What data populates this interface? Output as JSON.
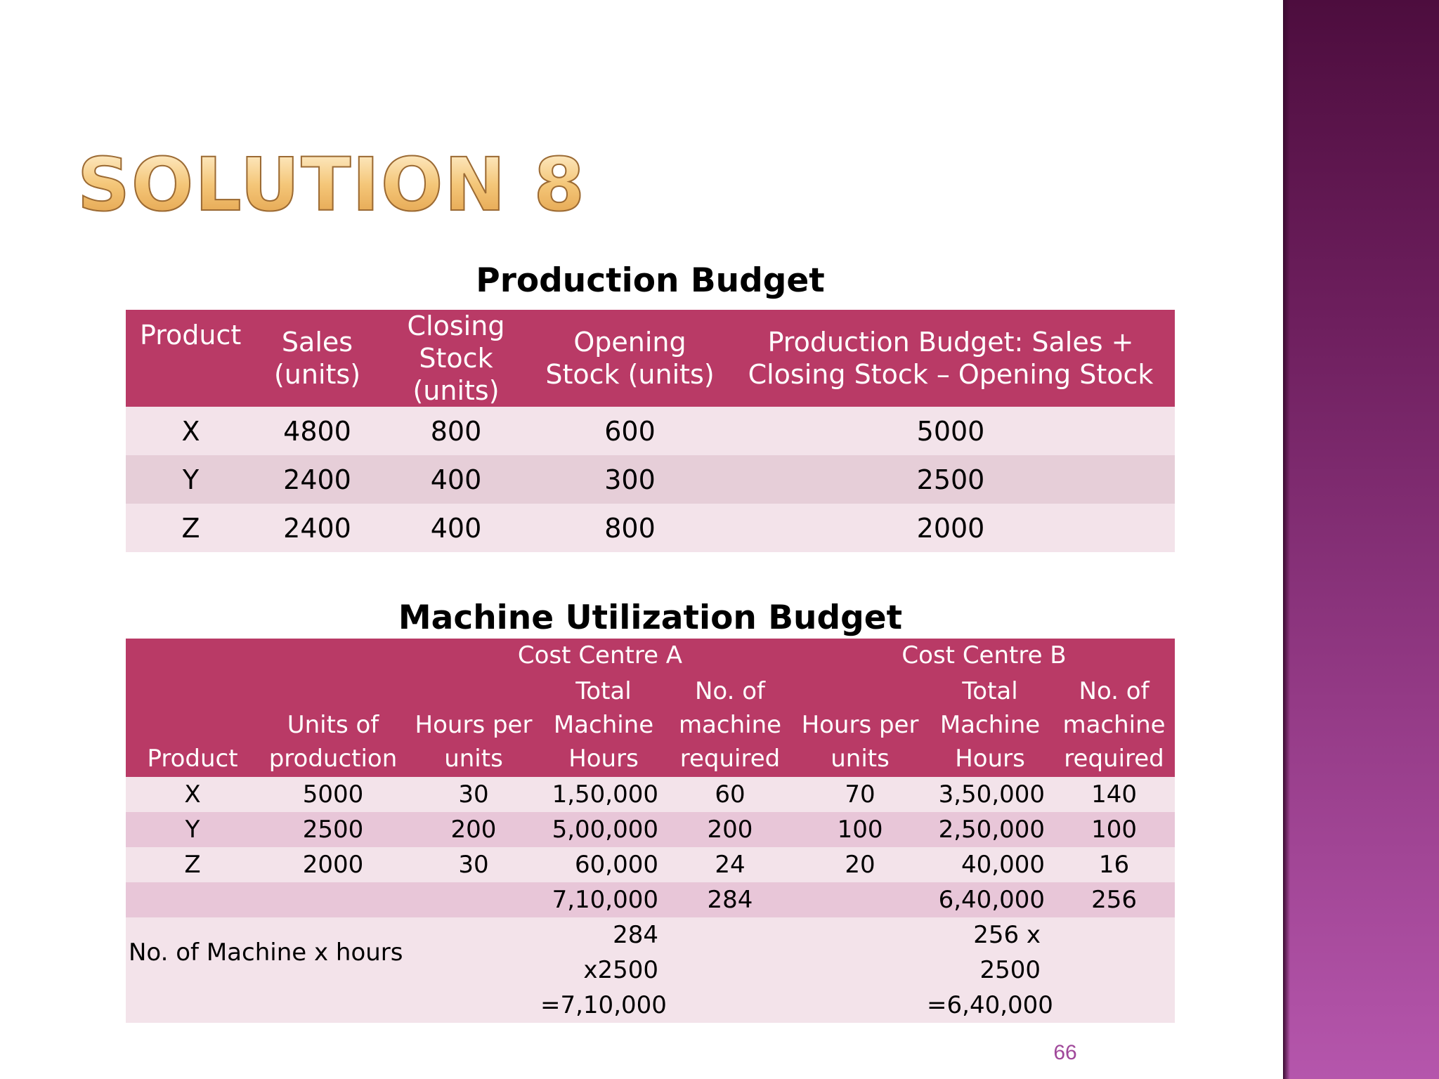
{
  "slide": {
    "title": "SOLUTION 8",
    "page_number": "66"
  },
  "production_budget": {
    "caption": "Production Budget",
    "headers": [
      "Product",
      "Sales (units)",
      "Closing Stock (units)",
      "Opening Stock (units)",
      "Production Budget: Sales + Closing Stock – Opening Stock"
    ],
    "rows": [
      [
        "X",
        "4800",
        "800",
        "600",
        "5000"
      ],
      [
        "Y",
        "2400",
        "400",
        "300",
        "2500"
      ],
      [
        "Z",
        "2400",
        "400",
        "800",
        "2000"
      ]
    ]
  },
  "machine_budget": {
    "caption": "Machine Utilization Budget",
    "group_a": "Cost Centre A",
    "group_b": "Cost Centre B",
    "headers": [
      "Product",
      "Units of production",
      "Hours per units",
      "Total Machine Hours",
      "No. of machine required",
      "Hours per units",
      "Total Machine Hours",
      "No. of machine required"
    ],
    "rows": [
      [
        "X",
        "5000",
        "30",
        "1,50,000",
        "60",
        "70",
        "3,50,000",
        "140"
      ],
      [
        "Y",
        "2500",
        "200",
        "5,00,000",
        "200",
        "100",
        "2,50,000",
        "100"
      ],
      [
        "Z",
        "2000",
        "30",
        "60,000",
        "24",
        "20",
        "40,000",
        "16"
      ],
      [
        "",
        "",
        "",
        "7,10,000",
        "284",
        "",
        "6,40,000",
        "256"
      ]
    ],
    "note_label": "No. of Machine x hours",
    "note_a_line1": "284 x2500",
    "note_a_line2": "=7,10,000",
    "note_b_line1": "256 x 2500",
    "note_b_line2": "=6,40,000"
  },
  "colors": {
    "header_bg": "#b93a66",
    "row_light": "#f3e3ea",
    "row_dark": "#e6ced8",
    "title_gold": "#f2b968",
    "side_bar": "#943a86"
  }
}
